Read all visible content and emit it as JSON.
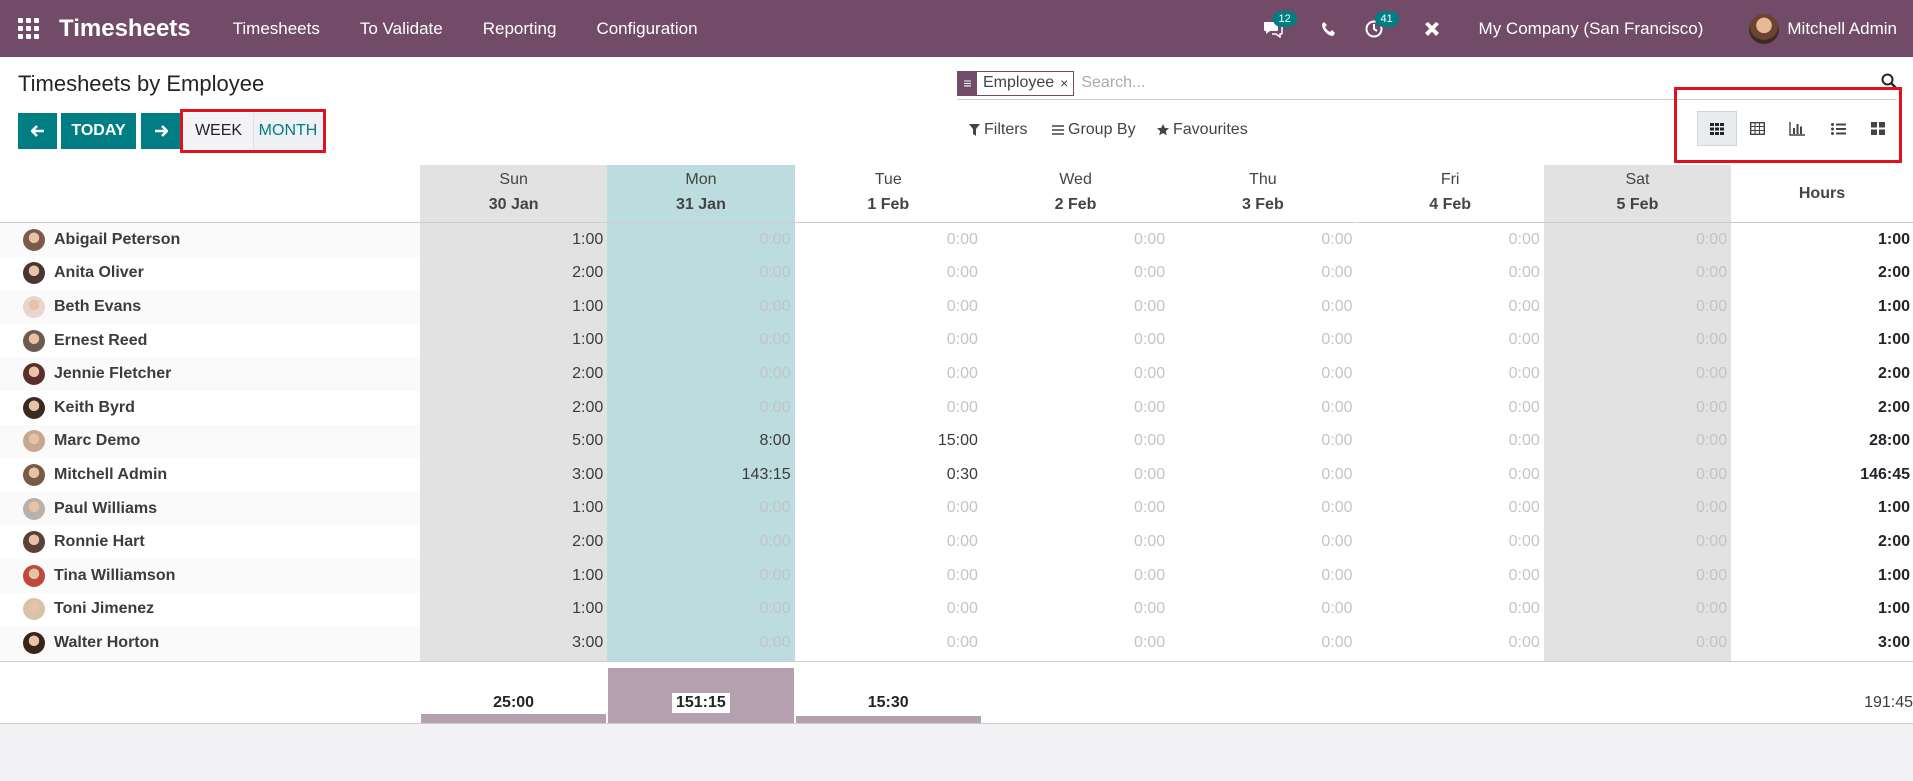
{
  "navbar": {
    "app_title": "Timesheets",
    "menus": [
      "Timesheets",
      "To Validate",
      "Reporting",
      "Configuration"
    ],
    "messages_badge": "12",
    "activities_badge": "41",
    "company": "My Company (San Francisco)",
    "user": "Mitchell Admin"
  },
  "control_panel": {
    "title": "Timesheets by Employee",
    "today_label": "TODAY",
    "week_label": "WEEK",
    "month_label": "MONTH",
    "facet_value": "Employee",
    "facet_remove": "×",
    "search_placeholder": "Search...",
    "filters_label": "Filters",
    "groupby_label": "Group By",
    "favourites_label": "Favourites",
    "views": [
      "grid-view-icon",
      "pivot-view-icon",
      "graph-view-icon",
      "list-view-icon",
      "kanban-view-icon"
    ],
    "active_view": "grid-view-icon"
  },
  "grid": {
    "columns": [
      {
        "day": "Sun",
        "date": "30 Jan",
        "shade": "weekend"
      },
      {
        "day": "Mon",
        "date": "31 Jan",
        "shade": "today"
      },
      {
        "day": "Tue",
        "date": "1 Feb",
        "shade": "none"
      },
      {
        "day": "Wed",
        "date": "2 Feb",
        "shade": "none"
      },
      {
        "day": "Thu",
        "date": "3 Feb",
        "shade": "none"
      },
      {
        "day": "Fri",
        "date": "4 Feb",
        "shade": "none"
      },
      {
        "day": "Sat",
        "date": "5 Feb",
        "shade": "weekend"
      }
    ],
    "total_header": "Hours",
    "rows": [
      {
        "name": "Abigail Peterson",
        "cells": [
          "1:00",
          "0:00",
          "0:00",
          "0:00",
          "0:00",
          "0:00",
          "0:00"
        ],
        "total": "1:00",
        "avatar_color": "#7a5a4a"
      },
      {
        "name": "Anita Oliver",
        "cells": [
          "2:00",
          "0:00",
          "0:00",
          "0:00",
          "0:00",
          "0:00",
          "0:00"
        ],
        "total": "2:00",
        "avatar_color": "#4a3530"
      },
      {
        "name": "Beth Evans",
        "cells": [
          "1:00",
          "0:00",
          "0:00",
          "0:00",
          "0:00",
          "0:00",
          "0:00"
        ],
        "total": "1:00",
        "avatar_color": "#e9d4cf"
      },
      {
        "name": "Ernest Reed",
        "cells": [
          "1:00",
          "0:00",
          "0:00",
          "0:00",
          "0:00",
          "0:00",
          "0:00"
        ],
        "total": "1:00",
        "avatar_color": "#6b5a50"
      },
      {
        "name": "Jennie Fletcher",
        "cells": [
          "2:00",
          "0:00",
          "0:00",
          "0:00",
          "0:00",
          "0:00",
          "0:00"
        ],
        "total": "2:00",
        "avatar_color": "#5a2e2a"
      },
      {
        "name": "Keith Byrd",
        "cells": [
          "2:00",
          "0:00",
          "0:00",
          "0:00",
          "0:00",
          "0:00",
          "0:00"
        ],
        "total": "2:00",
        "avatar_color": "#3a2a22"
      },
      {
        "name": "Marc Demo",
        "cells": [
          "5:00",
          "8:00",
          "15:00",
          "0:00",
          "0:00",
          "0:00",
          "0:00"
        ],
        "total": "28:00",
        "avatar_color": "#c9a690"
      },
      {
        "name": "Mitchell Admin",
        "cells": [
          "3:00",
          "143:15",
          "0:30",
          "0:00",
          "0:00",
          "0:00",
          "0:00"
        ],
        "total": "146:45",
        "avatar_color": "#7a5a45"
      },
      {
        "name": "Paul Williams",
        "cells": [
          "1:00",
          "0:00",
          "0:00",
          "0:00",
          "0:00",
          "0:00",
          "0:00"
        ],
        "total": "1:00",
        "avatar_color": "#b8b0aa"
      },
      {
        "name": "Ronnie Hart",
        "cells": [
          "2:00",
          "0:00",
          "0:00",
          "0:00",
          "0:00",
          "0:00",
          "0:00"
        ],
        "total": "2:00",
        "avatar_color": "#5a4035"
      },
      {
        "name": "Tina Williamson",
        "cells": [
          "1:00",
          "0:00",
          "0:00",
          "0:00",
          "0:00",
          "0:00",
          "0:00"
        ],
        "total": "1:00",
        "avatar_color": "#c04a3a"
      },
      {
        "name": "Toni Jimenez",
        "cells": [
          "1:00",
          "0:00",
          "0:00",
          "0:00",
          "0:00",
          "0:00",
          "0:00"
        ],
        "total": "1:00",
        "avatar_color": "#d8c2a8"
      },
      {
        "name": "Walter Horton",
        "cells": [
          "3:00",
          "0:00",
          "0:00",
          "0:00",
          "0:00",
          "0:00",
          "0:00"
        ],
        "total": "3:00",
        "avatar_color": "#3a2418"
      }
    ],
    "column_totals": [
      "25:00",
      "151:15",
      "15:30",
      "",
      "",
      "",
      ""
    ],
    "column_totals_fraction": [
      0.1653,
      1.0,
      0.1025,
      0,
      0,
      0,
      0
    ],
    "grand_total": "191:45"
  },
  "colors": {
    "navbar": "#714b67",
    "primary_button": "#017e84",
    "weekend_col": "#e2e2e3",
    "today_col": "#bcdcdf",
    "highlight_frame": "#e1121d",
    "bar": "#b5a0b0"
  }
}
